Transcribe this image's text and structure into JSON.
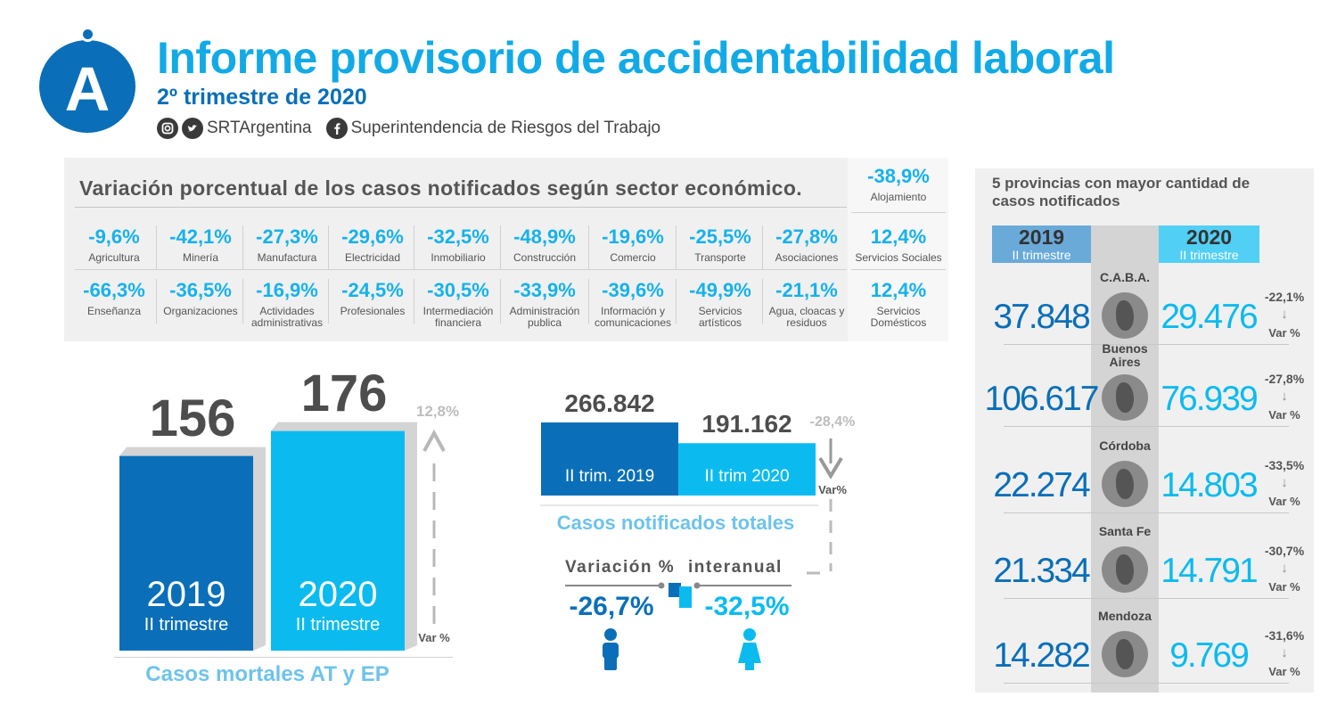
{
  "header": {
    "logo_letter": "A",
    "title": "Informe provisorio de accidentabilidad laboral",
    "subtitle": "2º trimestre de 2020",
    "social_handle": "SRTArgentina",
    "facebook_page": "Superintendencia de Riesgos del Trabajo",
    "icons": [
      "instagram-icon",
      "twitter-icon",
      "facebook-icon"
    ]
  },
  "colors": {
    "dark_blue": "#0a6fb8",
    "light_blue": "#0bbbef",
    "gray": "#d4d4d4",
    "panel": "#f0f0f0"
  },
  "chart_data": [
    {
      "type": "table",
      "title": "Variación porcentual de los casos notificados según sector económico.",
      "cells": [
        {
          "value": "-9,6%",
          "label": "Agricultura"
        },
        {
          "value": "-42,1%",
          "label": "Minería"
        },
        {
          "value": "-27,3%",
          "label": "Manufactura"
        },
        {
          "value": "-29,6%",
          "label": "Electricidad"
        },
        {
          "value": "-32,5%",
          "label": "Inmobiliario"
        },
        {
          "value": "-48,9%",
          "label": "Construcción"
        },
        {
          "value": "-19,6%",
          "label": "Comercio"
        },
        {
          "value": "-25,5%",
          "label": "Transporte"
        },
        {
          "value": "-27,8%",
          "label": "Asociaciones"
        },
        {
          "value": "-66,3%",
          "label": "Enseñanza"
        },
        {
          "value": "-36,5%",
          "label": "Organizaciones"
        },
        {
          "value": "-16,9%",
          "label": "Actividades administrativas"
        },
        {
          "value": "-24,5%",
          "label": "Profesionales"
        },
        {
          "value": "-30,5%",
          "label": "Intermediación financiera"
        },
        {
          "value": "-33,9%",
          "label": "Administración publica"
        },
        {
          "value": "-39,6%",
          "label": "Información y comunicaciones"
        },
        {
          "value": "-49,9%",
          "label": "Servicios artísticos"
        },
        {
          "value": "-21,1%",
          "label": "Agua, cloacas y residuos"
        }
      ],
      "side_cells": [
        {
          "value": "-38,9%",
          "label": "Alojamiento"
        },
        {
          "value": "12,4%",
          "label": "Servicios Sociales"
        },
        {
          "value": "12,4%",
          "label": "Servicios Domésticos"
        }
      ]
    },
    {
      "type": "bar",
      "title": "Casos mortales AT y EP",
      "categories": [
        "2019",
        "2020"
      ],
      "sublabels": [
        "II trimestre",
        "II trimestre"
      ],
      "values": [
        156,
        176
      ],
      "value_labels": [
        "156",
        "176"
      ],
      "variation": "12,8%",
      "variation_label": "Var %"
    },
    {
      "type": "bar",
      "title": "Casos notificados totales",
      "categories": [
        "II trim. 2019",
        "II trim 2020"
      ],
      "values": [
        266842,
        191162
      ],
      "value_labels": [
        "266.842",
        "191.162"
      ],
      "variation": "-28,4%",
      "variation_label": "Var%"
    },
    {
      "type": "table",
      "title": "Variación % interanual",
      "title_left": "Variación %",
      "title_right": "interanual",
      "male": "-26,7%",
      "female": "-32,5%"
    },
    {
      "type": "table",
      "title": "5 provincias con mayor cantidad de casos notificados",
      "col_2019": {
        "year": "2019",
        "sub": "II trimestre"
      },
      "col_2020": {
        "year": "2020",
        "sub": "II trimestre"
      },
      "var_label": "Var %",
      "rows": [
        {
          "name": "C.A.B.A.",
          "v2019": "37.848",
          "v2020": "29.476",
          "var": "-22,1%"
        },
        {
          "name": "Buenos Aires",
          "v2019": "106.617",
          "v2020": "76.939",
          "var": "-27,8%"
        },
        {
          "name": "Córdoba",
          "v2019": "22.274",
          "v2020": "14.803",
          "var": "-33,5%"
        },
        {
          "name": "Santa Fe",
          "v2019": "21.334",
          "v2020": "14.791",
          "var": "-30,7%"
        },
        {
          "name": "Mendoza",
          "v2019": "14.282",
          "v2020": "9.769",
          "var": "-31,6%"
        }
      ]
    }
  ]
}
